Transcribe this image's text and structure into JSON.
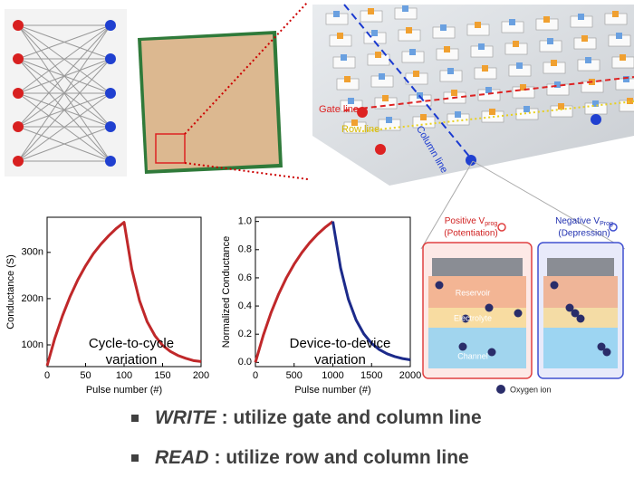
{
  "diagram": {
    "gate_line": "Gate line",
    "row_line": "Row line",
    "column_line": "Column line",
    "positive": {
      "text": "Positive V",
      "sub": "prog",
      "mode": "(Potentiation)"
    },
    "negative": {
      "text": "Negative V",
      "sub": "Prog",
      "mode": "(Depression)"
    },
    "layers": [
      "Reservoir",
      "Electrolyte",
      "Channel"
    ],
    "legend": "Oxygen ion"
  },
  "chart_data": [
    {
      "type": "line",
      "ylabel": "Conductance (S)",
      "xlabel": "Pulse number (#)",
      "annotation": [
        "Cycle-to-cycle",
        "variation"
      ],
      "x": [
        0,
        10,
        20,
        30,
        40,
        50,
        60,
        70,
        80,
        90,
        100,
        110,
        120,
        130,
        140,
        150,
        160,
        170,
        180,
        190,
        200
      ],
      "series": [
        {
          "color": "#c0282a",
          "values": [
            5.5e-08,
            1.14e-07,
            1.63e-07,
            2.05e-07,
            2.41e-07,
            2.71e-07,
            2.97e-07,
            3.18e-07,
            3.36e-07,
            3.52e-07,
            3.65e-07,
            2.64e-07,
            1.96e-07,
            1.5e-07,
            1.2e-07,
            9.9e-08,
            8.6e-08,
            7.7e-08,
            7.1e-08,
            6.6e-08,
            6.4e-08
          ]
        }
      ],
      "xlim": [
        0,
        200
      ],
      "xticks": [
        0,
        50,
        100,
        150,
        200
      ],
      "ylim": [
        5.3e-08,
        3.76e-07
      ],
      "yticks": [
        {
          "value": 1e-07,
          "label": "100n"
        },
        {
          "value": 2e-07,
          "label": "200n"
        },
        {
          "value": 3e-07,
          "label": "300n"
        }
      ]
    },
    {
      "type": "line",
      "ylabel": "Normalized Conductance",
      "xlabel": "Pulse number (#)",
      "annotation": [
        "Device-to-device",
        "variation"
      ],
      "x": [
        0,
        100,
        200,
        300,
        400,
        500,
        600,
        700,
        800,
        900,
        1000,
        1100,
        1200,
        1300,
        1400,
        1500,
        1600,
        1700,
        1800,
        1900,
        2000
      ],
      "series": [
        {
          "color": "#c0282a",
          "values": [
            0,
            0.189,
            0.35,
            0.485,
            0.6,
            0.697,
            0.779,
            0.849,
            0.908,
            0.958,
            1,
            null,
            null,
            null,
            null,
            null,
            null,
            null,
            null,
            null,
            null
          ]
        },
        {
          "color": "#1c2a8a",
          "values": [
            null,
            null,
            null,
            null,
            null,
            null,
            null,
            null,
            null,
            null,
            1,
            0.67,
            0.449,
            0.301,
            0.202,
            0.135,
            0.091,
            0.061,
            0.041,
            0.027,
            0.018
          ]
        }
      ],
      "xlim": [
        0,
        2000
      ],
      "xticks": [
        0,
        500,
        1000,
        1500,
        2000
      ],
      "ylim": [
        -0.03,
        1.03
      ],
      "yticks": [
        {
          "value": 0,
          "label": "0.0"
        },
        0.2,
        0.4,
        0.6,
        0.8,
        {
          "value": 1,
          "label": "1.0"
        }
      ]
    }
  ],
  "bullets": [
    {
      "key": "WRITE",
      "text": ": utilize gate and column line"
    },
    {
      "key": "READ",
      "text": ": utilize row and column line"
    }
  ]
}
